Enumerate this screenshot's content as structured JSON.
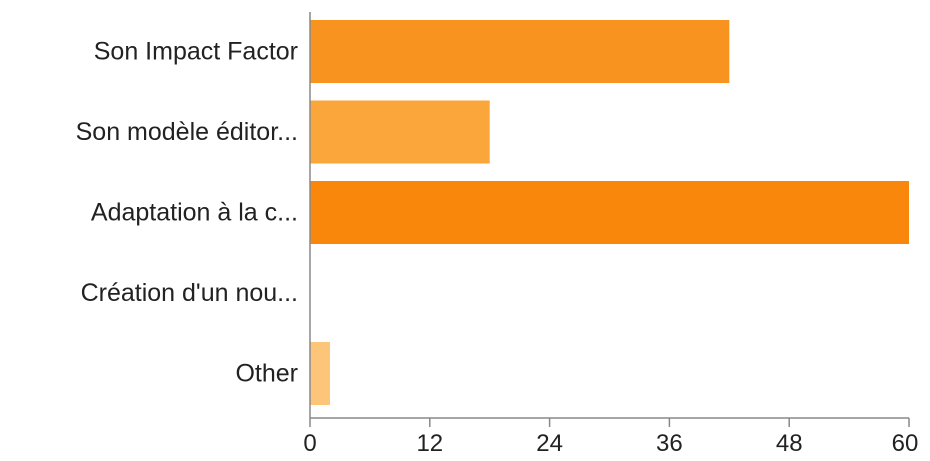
{
  "chart_data": {
    "type": "bar",
    "orientation": "horizontal",
    "categories": [
      "Son Impact Factor",
      "Son modèle éditor...",
      "Adaptation à la c...",
      "Création d'un nou...",
      "Other"
    ],
    "values": [
      42,
      18,
      60,
      0,
      2
    ],
    "bar_colors": [
      "#f7931e",
      "#fba63a",
      "#f8870b",
      "#f7931e",
      "#fcc579"
    ],
    "axis_color": "#888888",
    "xlim": [
      0,
      60
    ],
    "xticks": [
      0,
      12,
      24,
      36,
      48,
      60
    ],
    "grid": false,
    "legend": "none",
    "title": "",
    "xlabel": "",
    "ylabel": ""
  }
}
